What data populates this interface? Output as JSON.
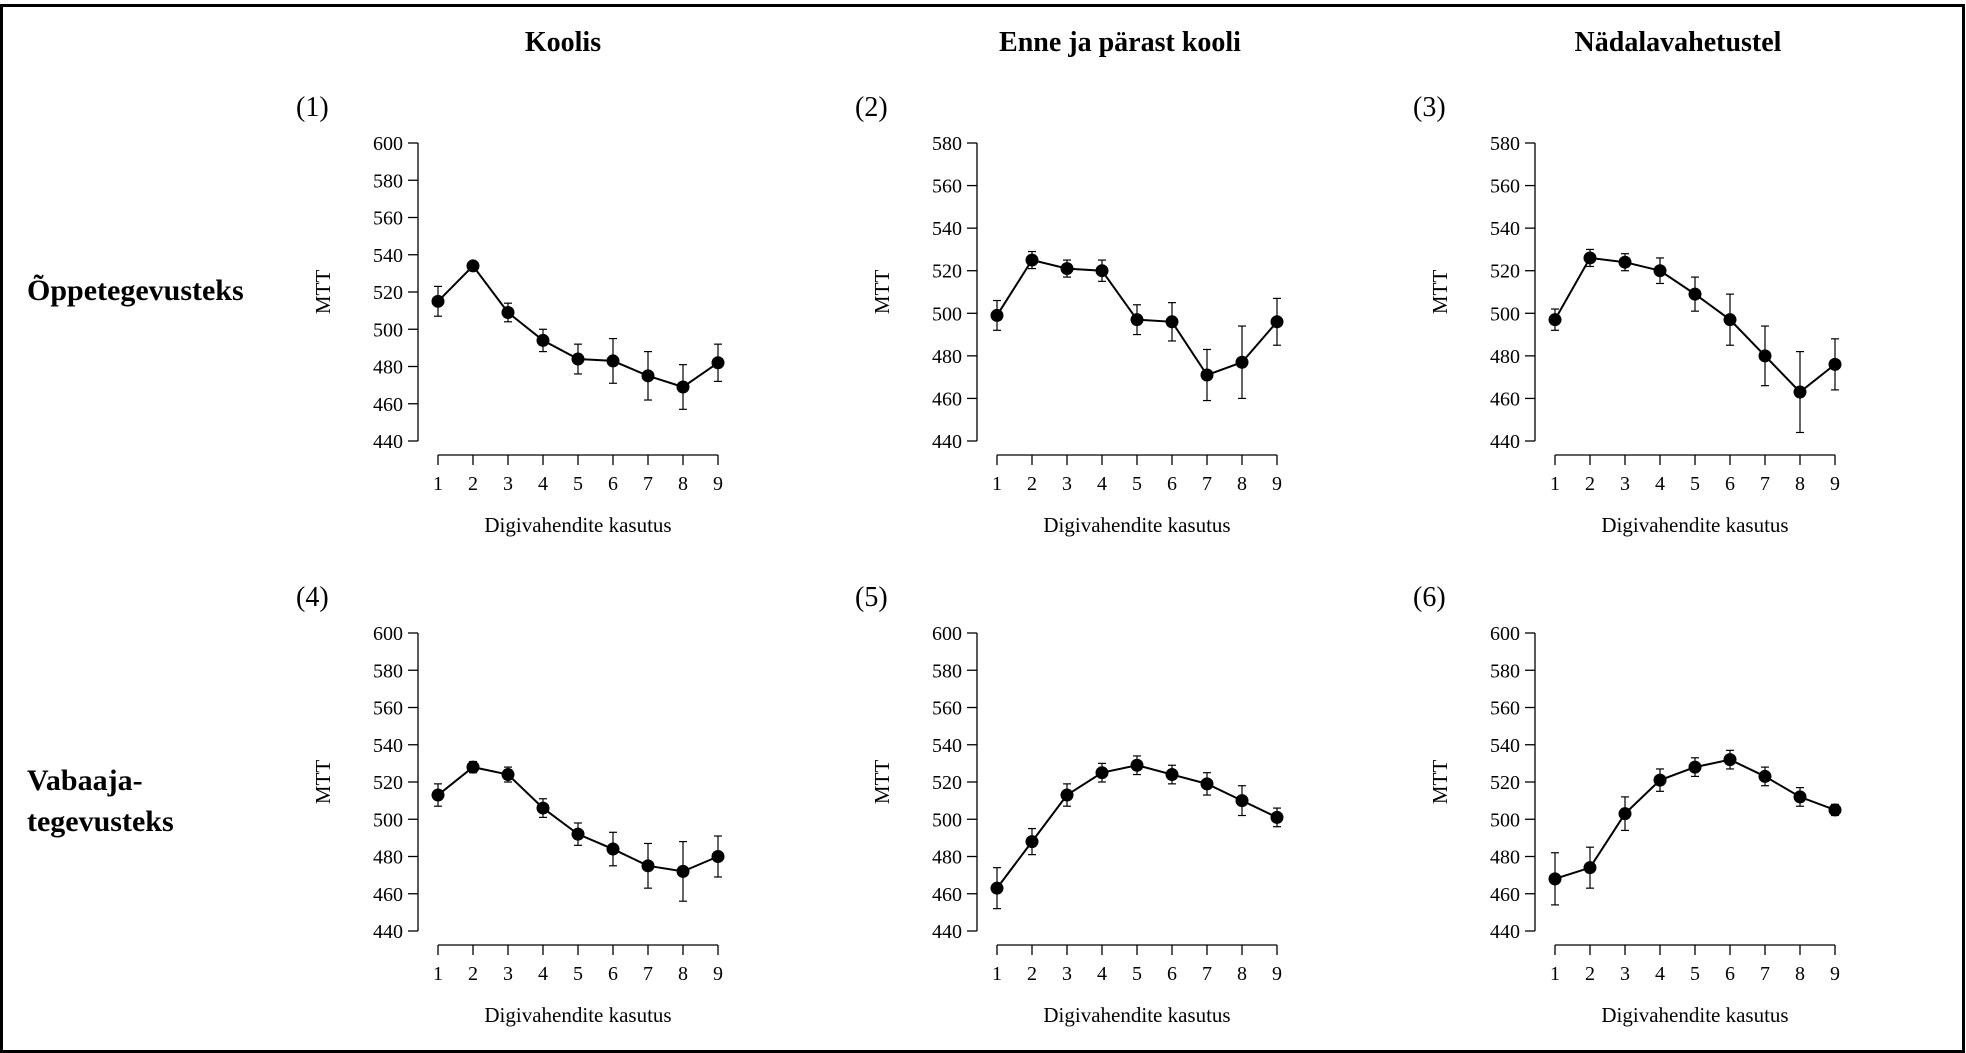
{
  "column_titles": [
    "Koolis",
    "Enne ja pärast kooli",
    "Nädalavahetustel"
  ],
  "row_titles": [
    [
      "Õppetegevusteks"
    ],
    [
      "Vabaaja-",
      "tegevusteks"
    ]
  ],
  "chart_data": [
    {
      "type": "line",
      "panel_label": "(1)",
      "xlabel": "Digivahendite kasutus",
      "ylabel": "MTT",
      "x": [
        1,
        2,
        3,
        4,
        5,
        6,
        7,
        8,
        9
      ],
      "ylim": [
        440,
        600
      ],
      "yticks": [
        440,
        460,
        480,
        500,
        520,
        540,
        560,
        580,
        600
      ],
      "values": [
        515,
        534,
        509,
        494,
        484,
        483,
        475,
        469,
        482
      ],
      "errors": [
        8,
        2,
        5,
        6,
        8,
        12,
        13,
        12,
        10
      ]
    },
    {
      "type": "line",
      "panel_label": "(2)",
      "xlabel": "Digivahendite kasutus",
      "ylabel": "MTT",
      "x": [
        1,
        2,
        3,
        4,
        5,
        6,
        7,
        8,
        9
      ],
      "ylim": [
        440,
        580
      ],
      "yticks": [
        440,
        460,
        480,
        500,
        520,
        540,
        560,
        580
      ],
      "values": [
        499,
        525,
        521,
        520,
        497,
        496,
        471,
        477,
        496
      ],
      "errors": [
        7,
        4,
        4,
        5,
        7,
        9,
        12,
        17,
        11
      ]
    },
    {
      "type": "line",
      "panel_label": "(3)",
      "xlabel": "Digivahendite kasutus",
      "ylabel": "MTT",
      "x": [
        1,
        2,
        3,
        4,
        5,
        6,
        7,
        8,
        9
      ],
      "ylim": [
        440,
        580
      ],
      "yticks": [
        440,
        460,
        480,
        500,
        520,
        540,
        560,
        580
      ],
      "values": [
        497,
        526,
        524,
        520,
        509,
        497,
        480,
        463,
        476
      ],
      "errors": [
        5,
        4,
        4,
        6,
        8,
        12,
        14,
        19,
        12
      ]
    },
    {
      "type": "line",
      "panel_label": "(4)",
      "xlabel": "Digivahendite kasutus",
      "ylabel": "MTT",
      "x": [
        1,
        2,
        3,
        4,
        5,
        6,
        7,
        8,
        9
      ],
      "ylim": [
        440,
        600
      ],
      "yticks": [
        440,
        460,
        480,
        500,
        520,
        540,
        560,
        580,
        600
      ],
      "values": [
        513,
        528,
        524,
        506,
        492,
        484,
        475,
        472,
        480
      ],
      "errors": [
        6,
        3,
        4,
        5,
        6,
        9,
        12,
        16,
        11
      ]
    },
    {
      "type": "line",
      "panel_label": "(5)",
      "xlabel": "Digivahendite kasutus",
      "ylabel": "MTT",
      "x": [
        1,
        2,
        3,
        4,
        5,
        6,
        7,
        8,
        9
      ],
      "ylim": [
        440,
        600
      ],
      "yticks": [
        440,
        460,
        480,
        500,
        520,
        540,
        560,
        580,
        600
      ],
      "values": [
        463,
        488,
        513,
        525,
        529,
        524,
        519,
        510,
        501
      ],
      "errors": [
        11,
        7,
        6,
        5,
        5,
        5,
        6,
        8,
        5
      ]
    },
    {
      "type": "line",
      "panel_label": "(6)",
      "xlabel": "Digivahendite kasutus",
      "ylabel": "MTT",
      "x": [
        1,
        2,
        3,
        4,
        5,
        6,
        7,
        8,
        9
      ],
      "ylim": [
        440,
        600
      ],
      "yticks": [
        440,
        460,
        480,
        500,
        520,
        540,
        560,
        580,
        600
      ],
      "values": [
        468,
        474,
        503,
        521,
        528,
        532,
        523,
        512,
        505
      ],
      "errors": [
        14,
        11,
        9,
        6,
        5,
        5,
        5,
        5,
        3
      ]
    }
  ]
}
